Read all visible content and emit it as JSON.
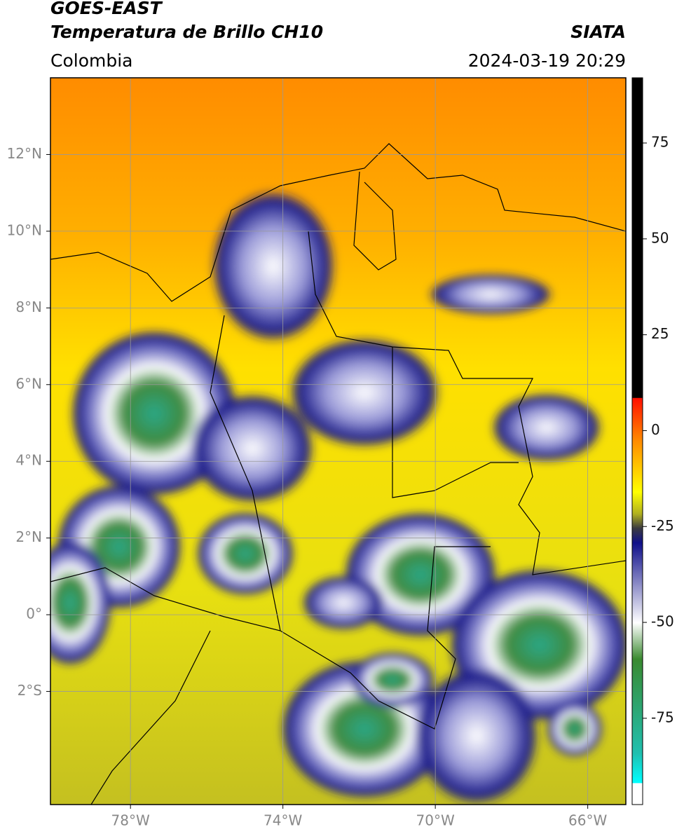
{
  "header": {
    "title": "GOES-EAST",
    "subtitle": "Temperatura de Brillo CH10",
    "region": "Colombia",
    "source": "SIATA",
    "datetime": "2024-03-19 20:29"
  },
  "map": {
    "xlim": [
      -80.1,
      -65
    ],
    "ylim": [
      -4.95,
      14
    ],
    "xticks": [
      {
        "value": -78,
        "label": "78°W"
      },
      {
        "value": -74,
        "label": "74°W"
      },
      {
        "value": -70,
        "label": "70°W"
      },
      {
        "value": -66,
        "label": "66°W"
      }
    ],
    "yticks": [
      {
        "value": 12,
        "label": "12°N"
      },
      {
        "value": 10,
        "label": "10°N"
      },
      {
        "value": 8,
        "label": "8°N"
      },
      {
        "value": 6,
        "label": "6°N"
      },
      {
        "value": 4,
        "label": "4°N"
      },
      {
        "value": 2,
        "label": "2°N"
      },
      {
        "value": 0,
        "label": "0°"
      },
      {
        "value": -2,
        "label": "2°S"
      }
    ],
    "grid": true
  },
  "colorbar": {
    "lim": [
      -97.5,
      92
    ],
    "ticks": [
      75,
      50,
      25,
      0,
      -25,
      -50,
      -75
    ]
  }
}
